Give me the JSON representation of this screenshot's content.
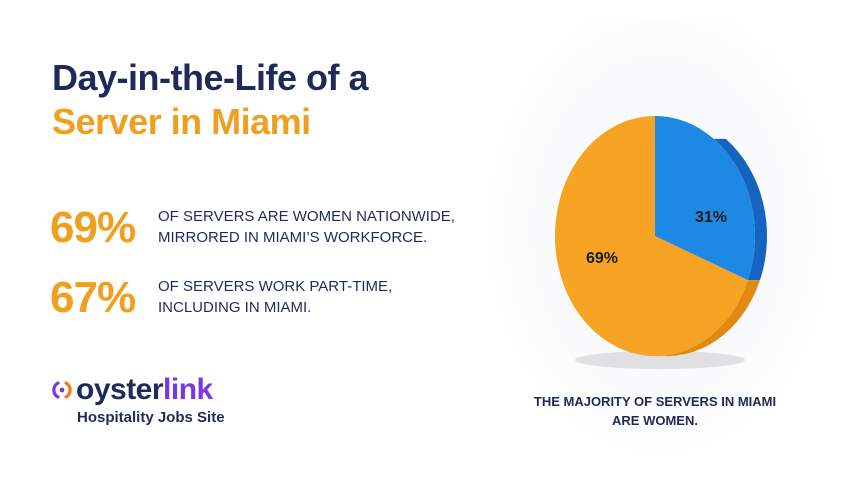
{
  "title": {
    "line1": "Day-in-the-Life of a",
    "line2": "Server in Miami"
  },
  "stats": [
    {
      "value": "69%",
      "text": "OF SERVERS ARE WOMEN NATIONWIDE, MIRRORED IN MIAMI’S WORKFORCE."
    },
    {
      "value": "67%",
      "text": "OF SERVERS WORK PART-TIME, INCLUDING IN MIAMI."
    }
  ],
  "logo": {
    "part1": "oyster",
    "part2": "link",
    "tagline": "Hospitality Jobs Site"
  },
  "caption": "THE MAJORITY OF SERVERS IN MIAMI ARE WOMEN.",
  "colors": {
    "navy": "#1f2a5a",
    "orange": "#f0a020",
    "blue": "#1e88e5",
    "purple": "#7b35e8"
  },
  "chart_data": {
    "type": "pie",
    "title": "",
    "slices": [
      {
        "label": "69%",
        "value": 69,
        "color": "#f7a324",
        "side": "#e08a12"
      },
      {
        "label": "31%",
        "value": 31,
        "color": "#1e88e5",
        "side": "#1565c0"
      }
    ]
  }
}
